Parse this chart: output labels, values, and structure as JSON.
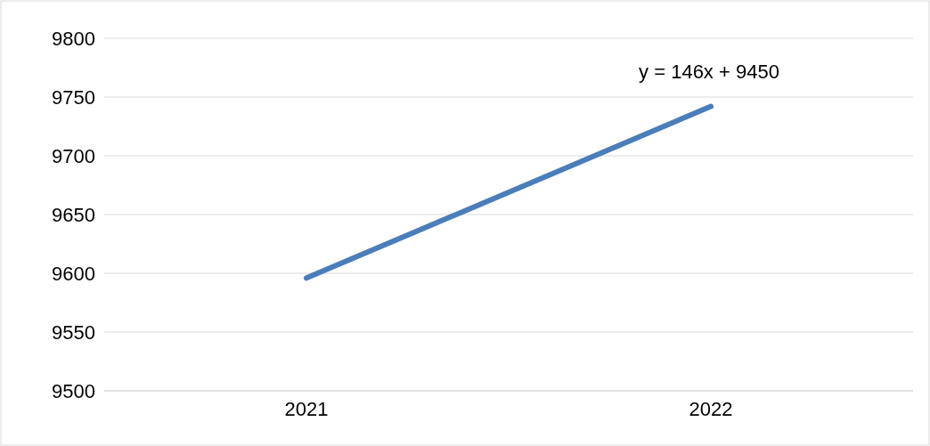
{
  "chart_data": {
    "type": "line",
    "categories": [
      "2021",
      "2022"
    ],
    "series": [
      {
        "color": "#4a7ebb",
        "values": [
          9596,
          9742
        ]
      }
    ],
    "ylim": [
      9500,
      9800
    ],
    "yticks": [
      9500,
      9550,
      9600,
      9650,
      9700,
      9750,
      9800
    ],
    "grid": "y",
    "marker": "none",
    "line_style": "solid",
    "annotations": [
      "y = 146x + 9450"
    ]
  }
}
